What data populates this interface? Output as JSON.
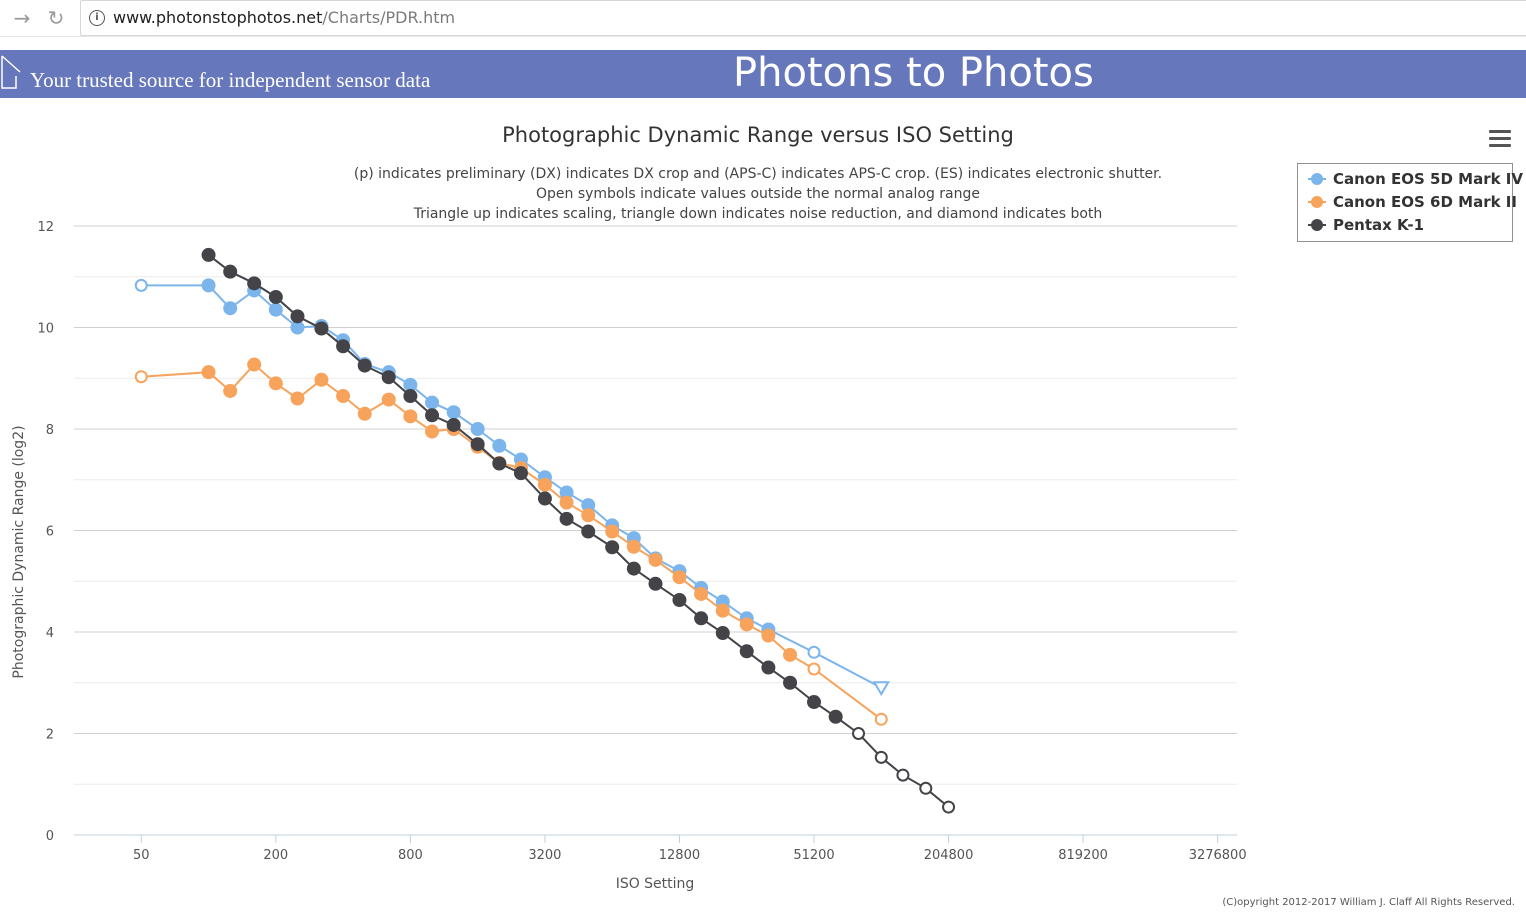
{
  "browser": {
    "url_host": "www.photonstophotos.net",
    "url_path": "/Charts/PDR.htm"
  },
  "banner": {
    "tagline": "Your trusted source for independent sensor data",
    "site_title": "Photons to Photos"
  },
  "chart_data": {
    "type": "line",
    "title": "Photographic Dynamic Range versus ISO Setting",
    "subtitle_lines": [
      "(p) indicates preliminary (DX) indicates DX crop and (APS-C) indicates APS-C crop. (ES) indicates electronic shutter.",
      "Open symbols indicate values outside the normal analog range",
      "Triangle up indicates scaling, triangle down indicates noise reduction, and diamond indicates both"
    ],
    "xlabel": "ISO Setting",
    "ylabel": "Photographic Dynamic Range (log2)",
    "xscale": "log2",
    "xlim": [
      25,
      4000000
    ],
    "ylim": [
      0,
      12
    ],
    "x_ticks": [
      50,
      200,
      800,
      3200,
      12800,
      51200,
      204800,
      819200,
      3276800
    ],
    "y_ticks": [
      0,
      2,
      4,
      6,
      8,
      10,
      12
    ],
    "legend_position": "top-right",
    "series": [
      {
        "name": "Canon EOS 5D Mark IV",
        "color": "#7cb5ec",
        "points": [
          {
            "x": 50,
            "y": 10.83,
            "m": "open"
          },
          {
            "x": 100,
            "y": 10.83
          },
          {
            "x": 125,
            "y": 10.38
          },
          {
            "x": 160,
            "y": 10.73
          },
          {
            "x": 200,
            "y": 10.35
          },
          {
            "x": 250,
            "y": 10.0
          },
          {
            "x": 320,
            "y": 10.03
          },
          {
            "x": 400,
            "y": 9.75
          },
          {
            "x": 500,
            "y": 9.28
          },
          {
            "x": 640,
            "y": 9.12
          },
          {
            "x": 800,
            "y": 8.87
          },
          {
            "x": 1000,
            "y": 8.52
          },
          {
            "x": 1250,
            "y": 8.33
          },
          {
            "x": 1600,
            "y": 8.0
          },
          {
            "x": 2000,
            "y": 7.67
          },
          {
            "x": 2500,
            "y": 7.4
          },
          {
            "x": 3200,
            "y": 7.05
          },
          {
            "x": 4000,
            "y": 6.75
          },
          {
            "x": 5000,
            "y": 6.5
          },
          {
            "x": 6400,
            "y": 6.1
          },
          {
            "x": 8000,
            "y": 5.85
          },
          {
            "x": 10000,
            "y": 5.45
          },
          {
            "x": 12800,
            "y": 5.2
          },
          {
            "x": 16000,
            "y": 4.87
          },
          {
            "x": 20000,
            "y": 4.6
          },
          {
            "x": 25600,
            "y": 4.27
          },
          {
            "x": 32000,
            "y": 4.05
          },
          {
            "x": 51200,
            "y": 3.6,
            "m": "open"
          },
          {
            "x": 102400,
            "y": 2.9,
            "m": "tri-down"
          }
        ]
      },
      {
        "name": "Canon EOS 6D Mark II",
        "color": "#f7a35c",
        "points": [
          {
            "x": 50,
            "y": 9.03,
            "m": "open"
          },
          {
            "x": 100,
            "y": 9.12
          },
          {
            "x": 125,
            "y": 8.75
          },
          {
            "x": 160,
            "y": 9.27
          },
          {
            "x": 200,
            "y": 8.9
          },
          {
            "x": 250,
            "y": 8.6
          },
          {
            "x": 320,
            "y": 8.97
          },
          {
            "x": 400,
            "y": 8.65
          },
          {
            "x": 500,
            "y": 8.3
          },
          {
            "x": 640,
            "y": 8.58
          },
          {
            "x": 800,
            "y": 8.25
          },
          {
            "x": 1000,
            "y": 7.95
          },
          {
            "x": 1250,
            "y": 8.0
          },
          {
            "x": 1600,
            "y": 7.65
          },
          {
            "x": 2000,
            "y": 7.33
          },
          {
            "x": 2500,
            "y": 7.23
          },
          {
            "x": 3200,
            "y": 6.9
          },
          {
            "x": 4000,
            "y": 6.55
          },
          {
            "x": 5000,
            "y": 6.3
          },
          {
            "x": 6400,
            "y": 5.98
          },
          {
            "x": 8000,
            "y": 5.68
          },
          {
            "x": 10000,
            "y": 5.42
          },
          {
            "x": 12800,
            "y": 5.08
          },
          {
            "x": 16000,
            "y": 4.75
          },
          {
            "x": 20000,
            "y": 4.42
          },
          {
            "x": 25600,
            "y": 4.15
          },
          {
            "x": 32000,
            "y": 3.93
          },
          {
            "x": 40000,
            "y": 3.55
          },
          {
            "x": 51200,
            "y": 3.27,
            "m": "open"
          },
          {
            "x": 102400,
            "y": 2.28,
            "m": "open"
          }
        ]
      },
      {
        "name": "Pentax K-1",
        "color": "#434348",
        "points": [
          {
            "x": 100,
            "y": 11.43
          },
          {
            "x": 125,
            "y": 11.1
          },
          {
            "x": 160,
            "y": 10.87
          },
          {
            "x": 200,
            "y": 10.6
          },
          {
            "x": 250,
            "y": 10.22
          },
          {
            "x": 320,
            "y": 9.98
          },
          {
            "x": 400,
            "y": 9.63
          },
          {
            "x": 500,
            "y": 9.25
          },
          {
            "x": 640,
            "y": 9.02
          },
          {
            "x": 800,
            "y": 8.65
          },
          {
            "x": 1000,
            "y": 8.27
          },
          {
            "x": 1250,
            "y": 8.08
          },
          {
            "x": 1600,
            "y": 7.7
          },
          {
            "x": 2000,
            "y": 7.32
          },
          {
            "x": 2500,
            "y": 7.13
          },
          {
            "x": 3200,
            "y": 6.63
          },
          {
            "x": 4000,
            "y": 6.23
          },
          {
            "x": 5000,
            "y": 5.98
          },
          {
            "x": 6400,
            "y": 5.67
          },
          {
            "x": 8000,
            "y": 5.25
          },
          {
            "x": 10000,
            "y": 4.95
          },
          {
            "x": 12800,
            "y": 4.63
          },
          {
            "x": 16000,
            "y": 4.27
          },
          {
            "x": 20000,
            "y": 3.98
          },
          {
            "x": 25600,
            "y": 3.62
          },
          {
            "x": 32000,
            "y": 3.3
          },
          {
            "x": 40000,
            "y": 3.0
          },
          {
            "x": 51200,
            "y": 2.62
          },
          {
            "x": 64000,
            "y": 2.33
          },
          {
            "x": 81000,
            "y": 2.0,
            "m": "open"
          },
          {
            "x": 102400,
            "y": 1.53,
            "m": "open"
          },
          {
            "x": 128000,
            "y": 1.18,
            "m": "open"
          },
          {
            "x": 162000,
            "y": 0.92,
            "m": "open"
          },
          {
            "x": 204800,
            "y": 0.55,
            "m": "open"
          }
        ]
      }
    ]
  },
  "copyright": "(C)opyright 2012-2017 William J. Claff All Rights Reserved."
}
